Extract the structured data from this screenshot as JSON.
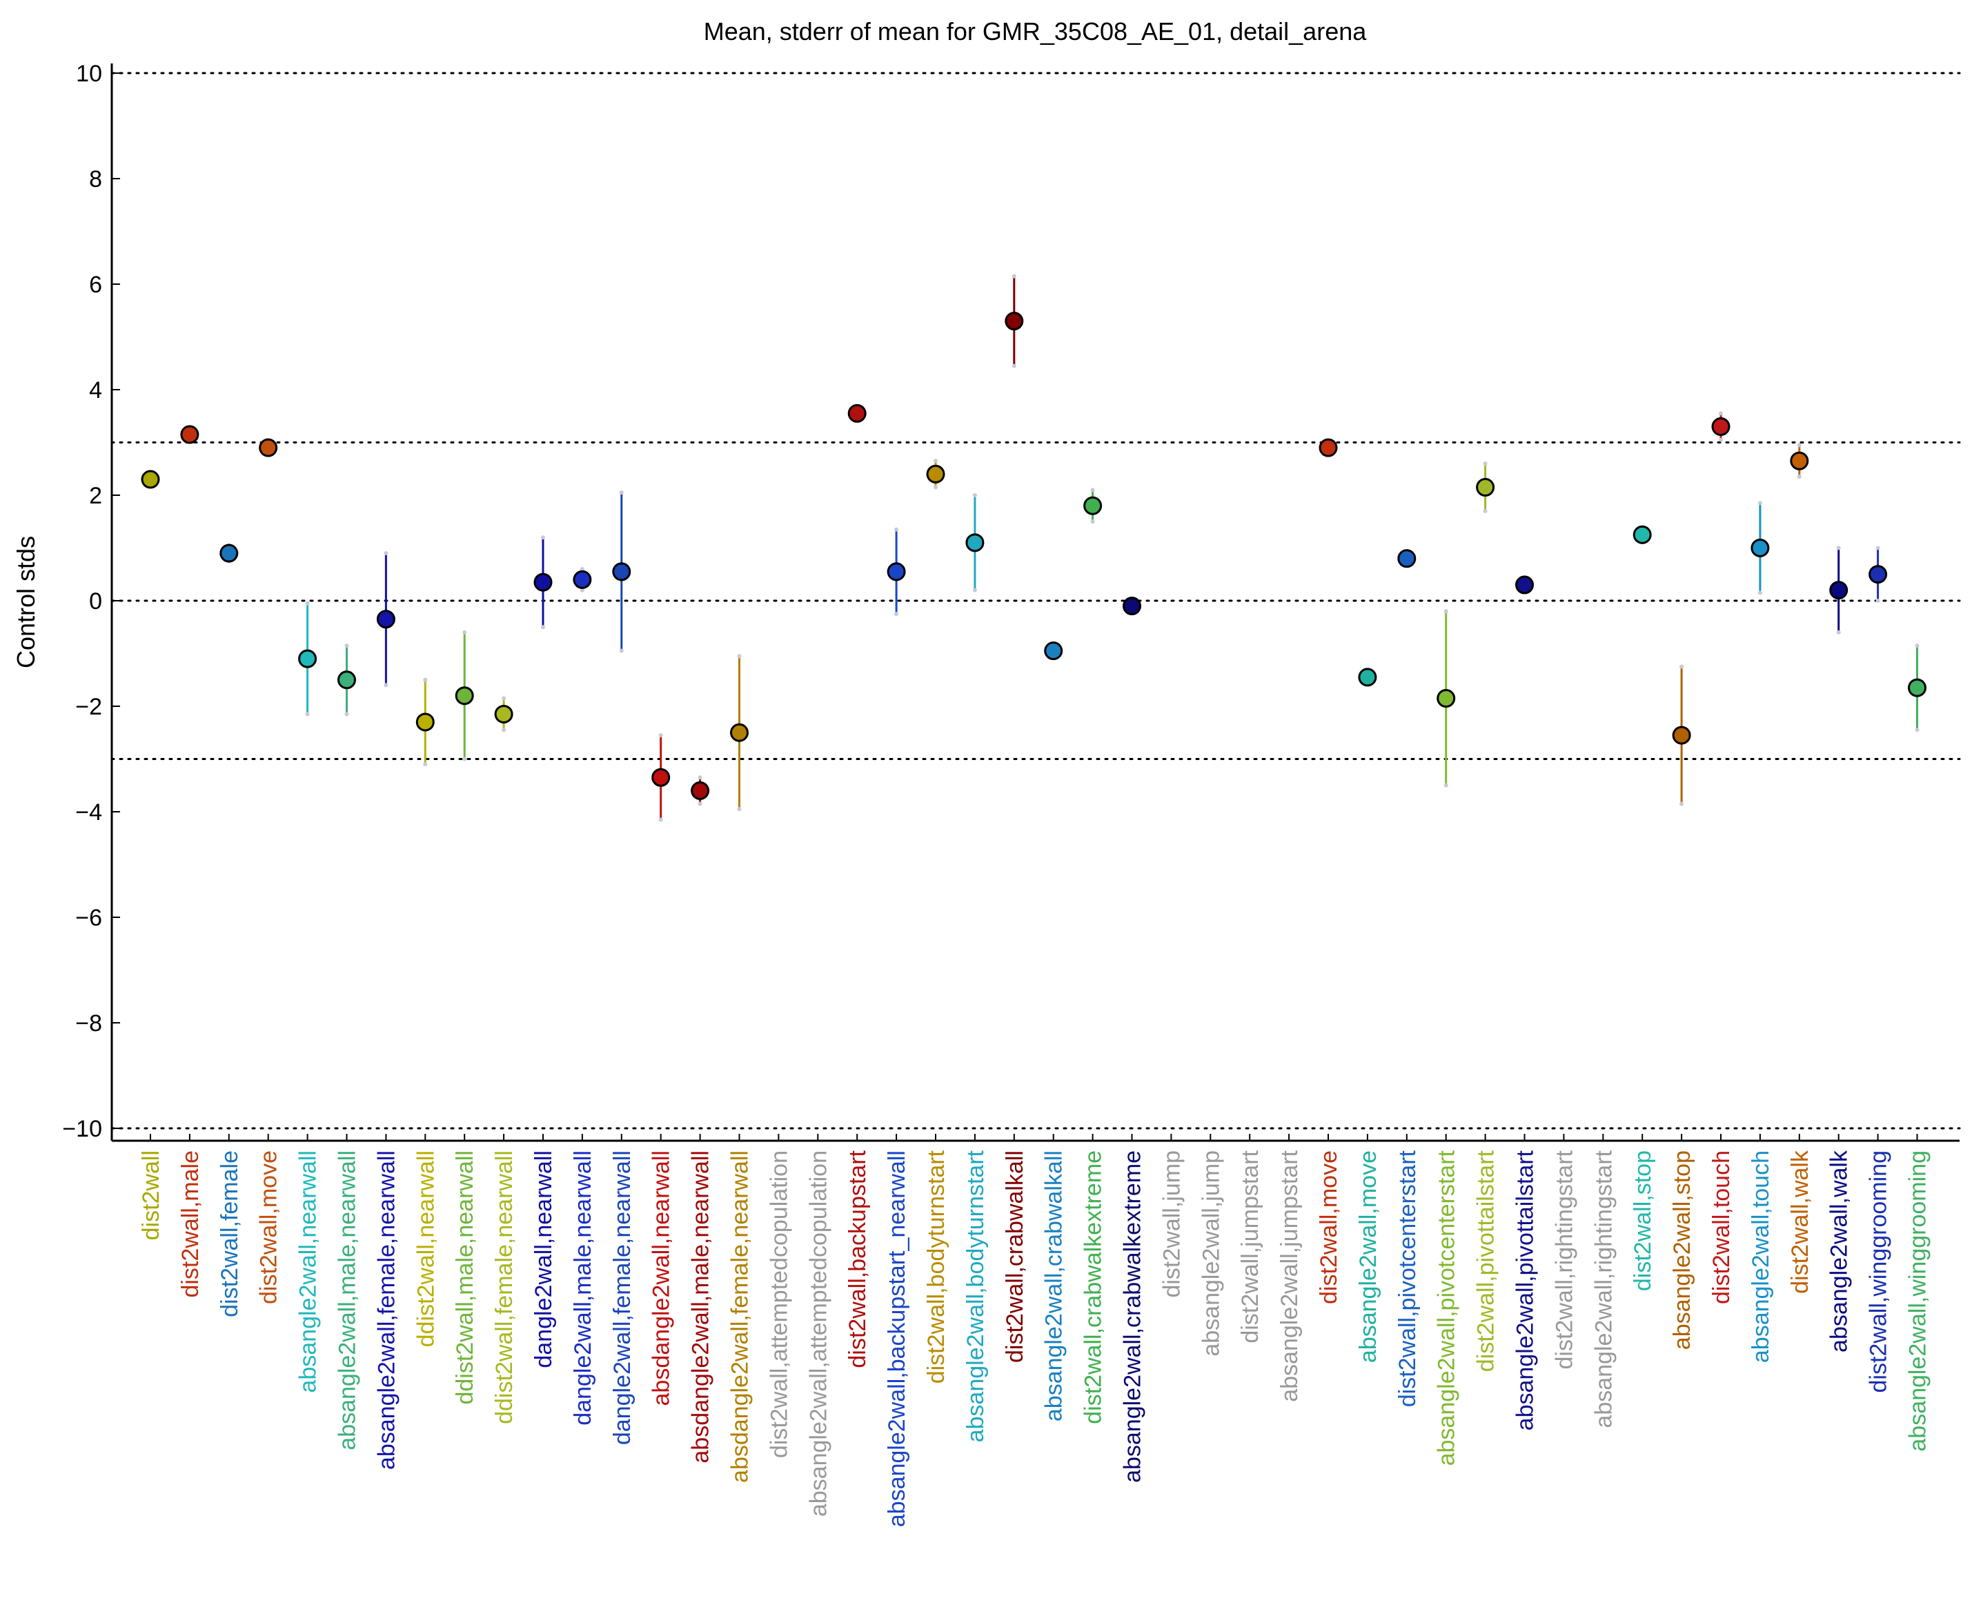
{
  "chart_data": {
    "type": "scatter",
    "title": "Mean, stderr of mean for GMR_35C08_AE_01, detail_arena",
    "xlabel": "",
    "ylabel": "Control stds",
    "ylim": [
      -10,
      10
    ],
    "yticks": [
      10,
      8,
      6,
      4,
      2,
      0,
      -2,
      -4,
      -6,
      -8,
      -10
    ],
    "ytick_labels": [
      "10",
      "8",
      "6",
      "4",
      "2",
      "0",
      "−2",
      "−4",
      "−6",
      "−8",
      "−10"
    ],
    "reference_lines": [
      10,
      3,
      0,
      -3,
      -10
    ],
    "grid": false,
    "points": [
      {
        "label": "dist2wall",
        "mean": 2.3,
        "err": 0.1,
        "color": "#a8a800"
      },
      {
        "label": "dist2wall,male",
        "mean": 3.15,
        "err": 0.1,
        "color": "#c0300f"
      },
      {
        "label": "dist2wall,female",
        "mean": 0.9,
        "err": 0.15,
        "color": "#1b73b8"
      },
      {
        "label": "dist2wall,move",
        "mean": 2.9,
        "err": 0.1,
        "color": "#c0500f"
      },
      {
        "label": "absangle2wall,nearwall",
        "mean": -1.1,
        "err": 1.05,
        "color": "#1fb8bb"
      },
      {
        "label": "absangle2wall,male,nearwall",
        "mean": -1.5,
        "err": 0.65,
        "color": "#3ab07a"
      },
      {
        "label": "absangle2wall,female,nearwall",
        "mean": -0.35,
        "err": 1.25,
        "color": "#1414a8"
      },
      {
        "label": "ddist2wall,nearwall",
        "mean": -2.3,
        "err": 0.8,
        "color": "#b8b000"
      },
      {
        "label": "ddist2wall,male,nearwall",
        "mean": -1.8,
        "err": 1.2,
        "color": "#6fb43a"
      },
      {
        "label": "ddist2wall,female,nearwall",
        "mean": -2.15,
        "err": 0.3,
        "color": "#a8b820"
      },
      {
        "label": "dangle2wall,nearwall",
        "mean": 0.35,
        "err": 0.85,
        "color": "#1010a0"
      },
      {
        "label": "dangle2wall,male,nearwall",
        "mean": 0.4,
        "err": 0.2,
        "color": "#1a2ec0"
      },
      {
        "label": "dangle2wall,female,nearwall",
        "mean": 0.55,
        "err": 1.5,
        "color": "#1a45b5"
      },
      {
        "label": "absdangle2wall,nearwall",
        "mean": -3.35,
        "err": 0.8,
        "color": "#c01010"
      },
      {
        "label": "absdangle2wall,male,nearwall",
        "mean": -3.6,
        "err": 0.25,
        "color": "#a00808"
      },
      {
        "label": "absdangle2wall,female,nearwall",
        "mean": -2.5,
        "err": 1.45,
        "color": "#b08000"
      },
      {
        "label": "dist2wall,attemptedcopulation",
        "mean": null,
        "err": null,
        "color": "#999999"
      },
      {
        "label": "absangle2wall,attemptedcopulation",
        "mean": null,
        "err": null,
        "color": "#999999"
      },
      {
        "label": "dist2wall,backupstart",
        "mean": 3.55,
        "err": 0.05,
        "color": "#b01010"
      },
      {
        "label": "absangle2wall,backupstart_nearwall",
        "mean": 0.55,
        "err": 0.8,
        "color": "#1a45c8"
      },
      {
        "label": "dist2wall,bodyturnstart",
        "mean": 2.4,
        "err": 0.25,
        "color": "#b88c00"
      },
      {
        "label": "absangle2wall,bodyturnstart",
        "mean": 1.1,
        "err": 0.9,
        "color": "#20a8c0"
      },
      {
        "label": "dist2wall,crabwalkall",
        "mean": 5.3,
        "err": 0.85,
        "color": "#800000"
      },
      {
        "label": "absangle2wall,crabwalkall",
        "mean": -0.95,
        "err": 0.05,
        "color": "#1a80c0"
      },
      {
        "label": "dist2wall,crabwalkextreme",
        "mean": 1.8,
        "err": 0.3,
        "color": "#40b050"
      },
      {
        "label": "absangle2wall,crabwalkextreme",
        "mean": -0.1,
        "err": 0.05,
        "color": "#0a0a70"
      },
      {
        "label": "dist2wall,jump",
        "mean": null,
        "err": null,
        "color": "#999999"
      },
      {
        "label": "absangle2wall,jump",
        "mean": null,
        "err": null,
        "color": "#999999"
      },
      {
        "label": "dist2wall,jumpstart",
        "mean": null,
        "err": null,
        "color": "#999999"
      },
      {
        "label": "absangle2wall,jumpstart",
        "mean": null,
        "err": null,
        "color": "#999999"
      },
      {
        "label": "dist2wall,move",
        "mean": 2.9,
        "err": 0.05,
        "color": "#c03010"
      },
      {
        "label": "absangle2wall,move",
        "mean": -1.45,
        "err": 0.05,
        "color": "#20b0a0"
      },
      {
        "label": "dist2wall,pivotcenterstart",
        "mean": 0.8,
        "err": 0.1,
        "color": "#1a60c0"
      },
      {
        "label": "absangle2wall,pivotcenterstart",
        "mean": -1.85,
        "err": 1.65,
        "color": "#80b830"
      },
      {
        "label": "dist2wall,pivottailstart",
        "mean": 2.15,
        "err": 0.45,
        "color": "#a0b828"
      },
      {
        "label": "absangle2wall,pivottailstart",
        "mean": 0.3,
        "err": 0.05,
        "color": "#10108a"
      },
      {
        "label": "dist2wall,rightingstart",
        "mean": null,
        "err": null,
        "color": "#999999"
      },
      {
        "label": "absangle2wall,rightingstart",
        "mean": null,
        "err": null,
        "color": "#999999"
      },
      {
        "label": "dist2wall,stop",
        "mean": 1.25,
        "err": 0.05,
        "color": "#20b8a8"
      },
      {
        "label": "absangle2wall,stop",
        "mean": -2.55,
        "err": 1.3,
        "color": "#b06000"
      },
      {
        "label": "dist2wall,touch",
        "mean": 3.3,
        "err": 0.25,
        "color": "#c01818"
      },
      {
        "label": "absangle2wall,touch",
        "mean": 1.0,
        "err": 0.85,
        "color": "#1a90c8"
      },
      {
        "label": "dist2wall,walk",
        "mean": 2.65,
        "err": 0.3,
        "color": "#c06000"
      },
      {
        "label": "absangle2wall,walk",
        "mean": 0.2,
        "err": 0.8,
        "color": "#0a0a80"
      },
      {
        "label": "dist2wall,winggrooming",
        "mean": 0.5,
        "err": 0.5,
        "color": "#1a30b0"
      },
      {
        "label": "absangle2wall,winggrooming",
        "mean": -1.65,
        "err": 0.8,
        "color": "#40b060"
      }
    ]
  }
}
